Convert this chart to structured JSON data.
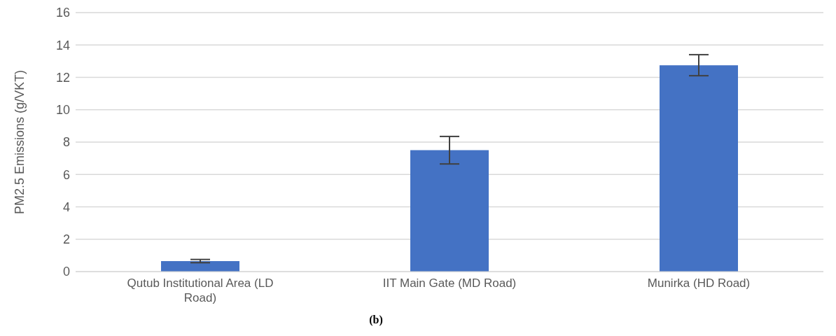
{
  "chart_data": {
    "type": "bar",
    "ylabel": "PM2.5 Emissions (g/VKT)",
    "categories": [
      "Qutub Institutional Area (LD Road)",
      "IIT Main Gate (MD Road)",
      "Munirka (HD Road)"
    ],
    "values": [
      0.65,
      7.5,
      12.75
    ],
    "errors": [
      0.1,
      0.85,
      0.65
    ],
    "color": "#4472c4",
    "ylim": [
      0,
      16
    ],
    "yticks": [
      0,
      2,
      4,
      6,
      8,
      10,
      12,
      14,
      16
    ],
    "grid": "y",
    "annotations": [
      "(b)"
    ]
  }
}
